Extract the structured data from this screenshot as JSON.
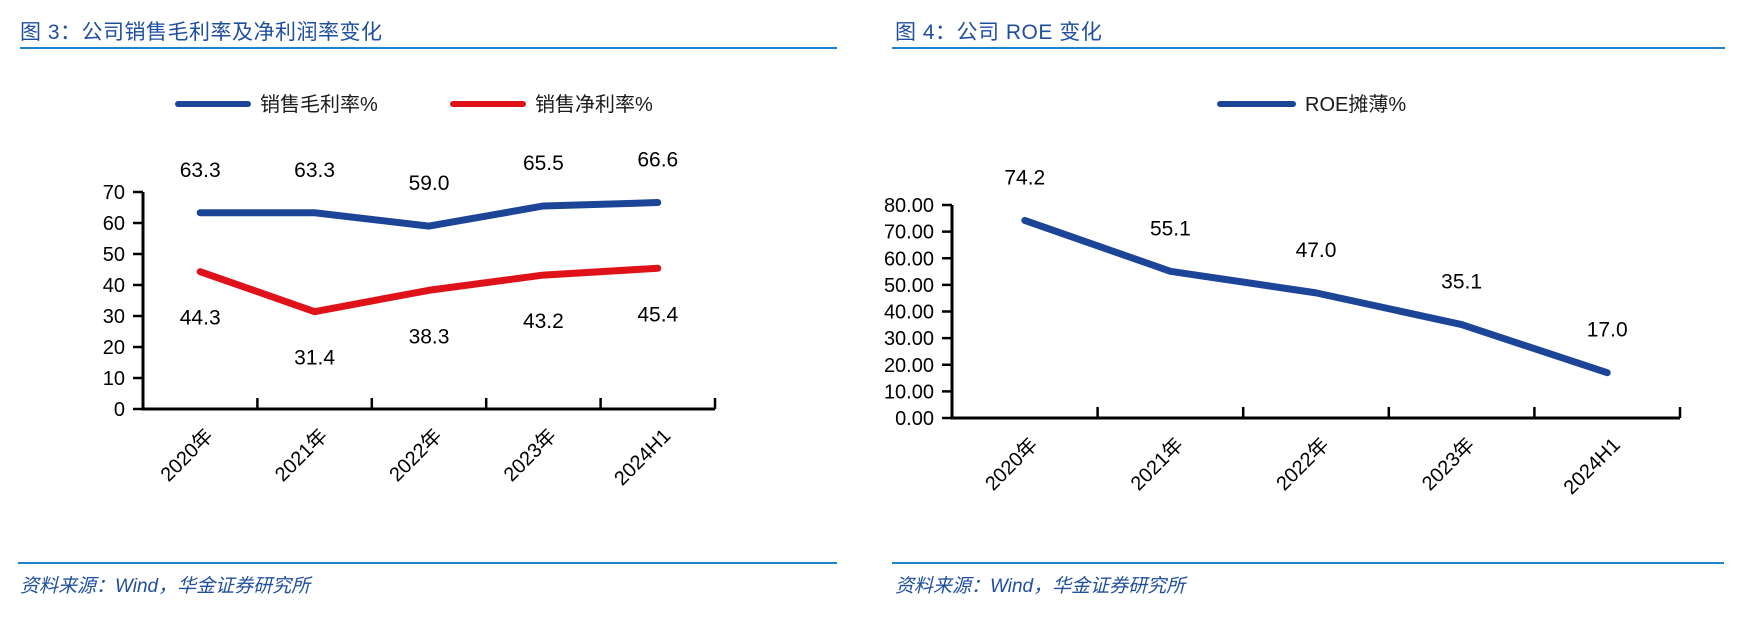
{
  "page": {
    "background": "#ffffff"
  },
  "colors": {
    "title_blue": "#1F4E9E",
    "rule_blue": "#1E82CC",
    "line_blue": "#1C4598",
    "line_red": "#DF1119",
    "axis_black": "#000000"
  },
  "panels": [
    {
      "title": "图 3：公司销售毛利率及净利润率变化",
      "source": "资料来源：Wind，华金证券研究所"
    },
    {
      "title": "图 4：公司 ROE 变化",
      "source": "资料来源：Wind，华金证券研究所"
    }
  ],
  "chart_data": [
    {
      "type": "line",
      "title": "图 3：公司销售毛利率及净利润率变化",
      "categories": [
        "2020年",
        "2021年",
        "2022年",
        "2023年",
        "2024H1"
      ],
      "series": [
        {
          "name": "销售毛利率%",
          "color": "#1C4598",
          "values": [
            63.3,
            63.3,
            59.0,
            65.5,
            66.6
          ],
          "label_position": "above"
        },
        {
          "name": "销售净利率%",
          "color": "#DF1119",
          "values": [
            44.3,
            31.4,
            38.3,
            43.2,
            45.4
          ],
          "label_position": "below"
        }
      ],
      "xlabel": "",
      "ylabel": "",
      "ylim": [
        0,
        70
      ],
      "ytick_step": 10,
      "ytick_format": "int",
      "grid": false,
      "legend_position": "top",
      "data_labels": true
    },
    {
      "type": "line",
      "title": "图 4：公司 ROE 变化",
      "categories": [
        "2020年",
        "2021年",
        "2022年",
        "2023年",
        "2024H1"
      ],
      "series": [
        {
          "name": "ROE摊薄%",
          "color": "#1C4598",
          "values": [
            74.2,
            55.1,
            47.0,
            35.1,
            17.0
          ],
          "label_position": "above"
        }
      ],
      "xlabel": "",
      "ylabel": "",
      "ylim": [
        0,
        80
      ],
      "ytick_step": 10,
      "ytick_format": "2dp",
      "grid": false,
      "legend_position": "top",
      "data_labels": true
    }
  ]
}
